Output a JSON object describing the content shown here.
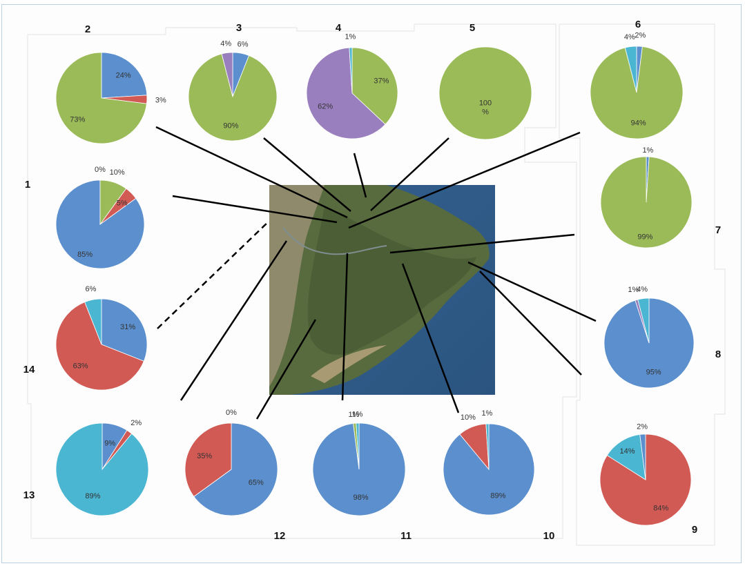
{
  "colors": {
    "blue": "#5b8fcd",
    "red": "#d25a55",
    "green": "#9bbb59",
    "purple": "#9a7fbf",
    "cyan": "#4bb6d2"
  },
  "chart_data": [
    {
      "type": "pie",
      "title": "1",
      "values": [
        85,
        5,
        10,
        0
      ],
      "labels": [
        "85%",
        "5%",
        "10%",
        "0%"
      ],
      "colors": [
        "blue",
        "red",
        "green",
        "purple"
      ]
    },
    {
      "type": "pie",
      "title": "2",
      "values": [
        24,
        3,
        73
      ],
      "labels": [
        "24%",
        "3%",
        "73%"
      ],
      "colors": [
        "blue",
        "red",
        "green"
      ]
    },
    {
      "type": "pie",
      "title": "3",
      "values": [
        6,
        90,
        4
      ],
      "labels": [
        "6%",
        "90%",
        "4%"
      ],
      "colors": [
        "blue",
        "green",
        "purple"
      ]
    },
    {
      "type": "pie",
      "title": "4",
      "values": [
        37,
        62,
        1
      ],
      "labels": [
        "37%",
        "62%",
        "1%"
      ],
      "colors": [
        "green",
        "purple",
        "cyan"
      ]
    },
    {
      "type": "pie",
      "title": "5",
      "values": [
        100
      ],
      "labels": [
        "100\n%"
      ],
      "colors": [
        "green"
      ]
    },
    {
      "type": "pie",
      "title": "6",
      "values": [
        2,
        94,
        4
      ],
      "labels": [
        "2%",
        "94%",
        "4%"
      ],
      "colors": [
        "blue",
        "green",
        "cyan"
      ]
    },
    {
      "type": "pie",
      "title": "7",
      "values": [
        1,
        99
      ],
      "labels": [
        "1%",
        "99%"
      ],
      "colors": [
        "blue",
        "green"
      ]
    },
    {
      "type": "pie",
      "title": "8",
      "values": [
        95,
        1,
        4
      ],
      "labels": [
        "95%",
        "1%",
        "4%"
      ],
      "colors": [
        "blue",
        "purple",
        "cyan"
      ]
    },
    {
      "type": "pie",
      "title": "9",
      "values": [
        84,
        14,
        2
      ],
      "labels": [
        "84%",
        "14%",
        "2%"
      ],
      "colors": [
        "red",
        "cyan",
        "blue"
      ]
    },
    {
      "type": "pie",
      "title": "10",
      "values": [
        89,
        10,
        1
      ],
      "labels": [
        "89%",
        "10%",
        "1%"
      ],
      "colors": [
        "blue",
        "red",
        "cyan"
      ]
    },
    {
      "type": "pie",
      "title": "11",
      "values": [
        98,
        1,
        1
      ],
      "labels": [
        "98%",
        "1%",
        "1%"
      ],
      "colors": [
        "blue",
        "green",
        "cyan"
      ]
    },
    {
      "type": "pie",
      "title": "12",
      "values": [
        65,
        35,
        0
      ],
      "labels": [
        "65%",
        "35%",
        "0%"
      ],
      "colors": [
        "blue",
        "red",
        "green"
      ]
    },
    {
      "type": "pie",
      "title": "13",
      "values": [
        9,
        2,
        89
      ],
      "labels": [
        "9%",
        "2%",
        "89%"
      ],
      "colors": [
        "blue",
        "red",
        "cyan"
      ]
    },
    {
      "type": "pie",
      "title": "14",
      "values": [
        31,
        63,
        6
      ],
      "labels": [
        "31%",
        "63%",
        "6%"
      ],
      "colors": [
        "blue",
        "red",
        "cyan"
      ]
    }
  ]
}
